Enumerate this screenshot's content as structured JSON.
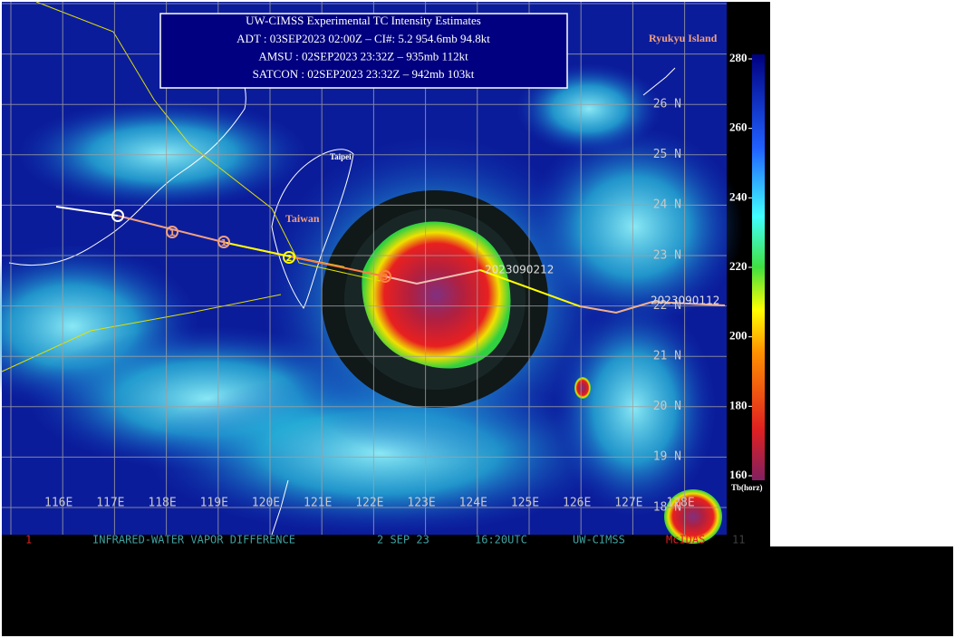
{
  "info_box": {
    "title": "UW-CIMSS Experimental TC Intensity Estimates",
    "lines": [
      "ADT : 03SEP2023 02:00Z –  CI#: 5.2   954.6mb   94.8kt",
      "AMSU : 02SEP2023 23:32Z –  935mb   112kt",
      "SATCON : 02SEP2023 23:32Z –  942mb   103kt"
    ]
  },
  "map_labels": {
    "region": "Ryukyu Island",
    "city": "Taipei",
    "island": "Taiwan"
  },
  "track_labels": [
    "2023090212",
    "2023090112"
  ],
  "track_markers": [
    "1",
    "1",
    "2",
    "3"
  ],
  "latitude_labels": [
    "26 N",
    "25 N",
    "24 N",
    "23 N",
    "22 N",
    "21 N",
    "20 N",
    "19 N",
    "18 N"
  ],
  "longitude_labels": [
    "116E",
    "117E",
    "118E",
    "119E",
    "120E",
    "121E",
    "122E",
    "123E",
    "124E",
    "125E",
    "126E",
    "127E",
    "128E"
  ],
  "colorbar": {
    "label": "Tb(horz)",
    "lim": [
      160,
      280
    ],
    "ticks": [
      280,
      260,
      240,
      220,
      200,
      180,
      160
    ]
  },
  "footer": {
    "frame": "1",
    "product": "INFRARED-WATER VAPOR DIFFERENCE",
    "date": "2 SEP 23",
    "time": "16:20UTC",
    "source": "UW-CIMSS",
    "software": "McIDAS",
    "band": "11"
  }
}
